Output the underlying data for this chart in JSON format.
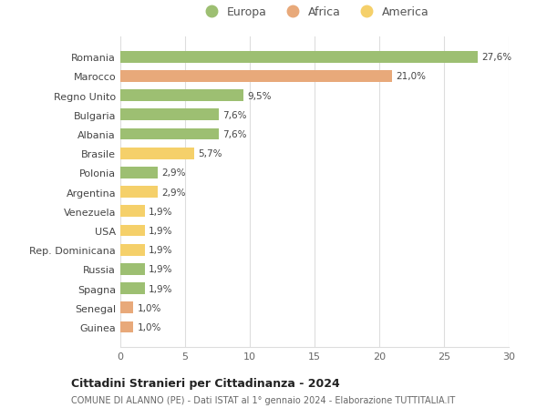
{
  "categories": [
    "Guinea",
    "Senegal",
    "Spagna",
    "Russia",
    "Rep. Dominicana",
    "USA",
    "Venezuela",
    "Argentina",
    "Polonia",
    "Brasile",
    "Albania",
    "Bulgaria",
    "Regno Unito",
    "Marocco",
    "Romania"
  ],
  "values": [
    1.0,
    1.0,
    1.9,
    1.9,
    1.9,
    1.9,
    1.9,
    2.9,
    2.9,
    5.7,
    7.6,
    7.6,
    9.5,
    21.0,
    27.6
  ],
  "colors": [
    "#e8a97a",
    "#e8a97a",
    "#9dbf72",
    "#9dbf72",
    "#f5d06a",
    "#f5d06a",
    "#f5d06a",
    "#f5d06a",
    "#9dbf72",
    "#f5d06a",
    "#9dbf72",
    "#9dbf72",
    "#9dbf72",
    "#e8a97a",
    "#9dbf72"
  ],
  "labels": [
    "1,0%",
    "1,0%",
    "1,9%",
    "1,9%",
    "1,9%",
    "1,9%",
    "1,9%",
    "2,9%",
    "2,9%",
    "5,7%",
    "7,6%",
    "7,6%",
    "9,5%",
    "21,0%",
    "27,6%"
  ],
  "legend": [
    {
      "label": "Europa",
      "color": "#9dbf72"
    },
    {
      "label": "Africa",
      "color": "#e8a97a"
    },
    {
      "label": "America",
      "color": "#f5d06a"
    }
  ],
  "title": "Cittadini Stranieri per Cittadinanza - 2024",
  "subtitle": "COMUNE DI ALANNO (PE) - Dati ISTAT al 1° gennaio 2024 - Elaborazione TUTTITALIA.IT",
  "xlim": [
    0,
    30
  ],
  "xticks": [
    0,
    5,
    10,
    15,
    20,
    25,
    30
  ],
  "background_color": "#ffffff",
  "grid_color": "#dddddd",
  "bar_height": 0.6
}
